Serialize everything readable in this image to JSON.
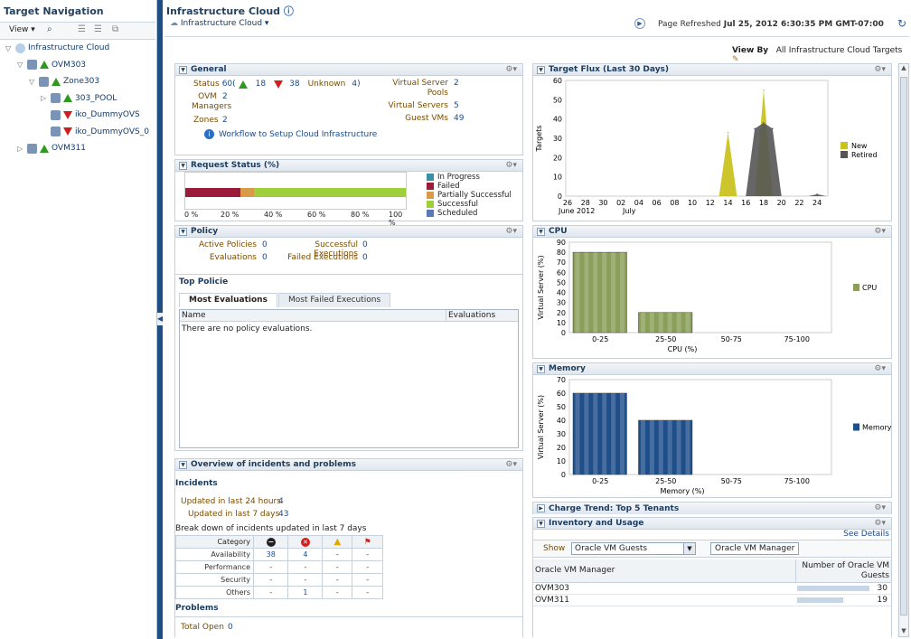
{
  "nav": {
    "title": "Target Navigation",
    "view_label": "View",
    "tree": [
      {
        "label": "Infrastructure Cloud",
        "indent": 0,
        "twisty": "▽",
        "status": ""
      },
      {
        "label": "OVM303",
        "indent": 1,
        "twisty": "▽",
        "status": "up"
      },
      {
        "label": "Zone303",
        "indent": 2,
        "twisty": "▽",
        "status": "up"
      },
      {
        "label": "303_POOL",
        "indent": 3,
        "twisty": "▷",
        "status": "up"
      },
      {
        "label": "iko_DummyOVS",
        "indent": 3,
        "twisty": "",
        "status": "down"
      },
      {
        "label": "iko_DummyOVS_0",
        "indent": 3,
        "twisty": "",
        "status": "down"
      },
      {
        "label": "OVM311",
        "indent": 1,
        "twisty": "▷",
        "status": "up"
      }
    ]
  },
  "header": {
    "title": "Infrastructure Cloud",
    "crumb": "Infrastructure Cloud",
    "refresh_label": "Page Refreshed",
    "refresh_time": "Jul 25, 2012 6:30:35 PM GMT-07:00",
    "viewby_label": "View By",
    "viewby_value": "All Infrastructure Cloud Targets"
  },
  "general": {
    "title": "General",
    "status_label": "Status",
    "status_val": "60(",
    "up_count": "18",
    "down_count": "38",
    "unknown": "Unknown",
    "unknown_val": "4)",
    "ovm_label": "OVM Managers",
    "ovm_val": "2",
    "zones_label": "Zones",
    "zones_val": "2",
    "vsp_label": "Virtual Server Pools",
    "vsp_val": "2",
    "vs_label": "Virtual Servers",
    "vs_val": "5",
    "guest_label": "Guest VMs",
    "guest_val": "49",
    "workflow": "Workflow to Setup Cloud Infrastructure"
  },
  "request": {
    "title": "Request Status (%)",
    "ticks": [
      "0 %",
      "20 %",
      "40 %",
      "60 %",
      "80 %",
      "100 %"
    ],
    "legend": [
      {
        "name": "In Progress",
        "color": "#3d8fa5"
      },
      {
        "name": "Failed",
        "color": "#9b1b3b"
      },
      {
        "name": "Partially Successful",
        "color": "#d99b4a"
      },
      {
        "name": "Successful",
        "color": "#9fcf3a"
      },
      {
        "name": "Scheduled",
        "color": "#5a78b5"
      }
    ],
    "segments": [
      {
        "name": "Failed",
        "pct": 25,
        "color": "#9b1b3b"
      },
      {
        "name": "Partially Successful",
        "pct": 6,
        "color": "#d99b4a"
      },
      {
        "name": "Successful",
        "pct": 69,
        "color": "#9fcf3a"
      }
    ]
  },
  "policy": {
    "title": "Policy",
    "active_label": "Active Policies",
    "active_val": "0",
    "succ_label": "Successful Executions",
    "succ_val": "0",
    "eval_label": "Evaluations",
    "eval_val": "0",
    "failed_label": "Failed Executions",
    "failed_val": "0",
    "top_title": "Top Policie",
    "tab1": "Most Evaluations",
    "tab2": "Most Failed Executions",
    "col_name": "Name",
    "col_eval": "Evaluations",
    "empty": "There are no policy evaluations."
  },
  "incidents": {
    "title": "Overview of incidents and problems",
    "section": "Incidents",
    "last24_label": "Updated in last 24 hours",
    "last24_val": "4",
    "last7_label": "Updated in last 7 days",
    "last7_val": "43",
    "breakdown": "Break down of incidents updated in last 7 days",
    "col_category": "Category",
    "rows": [
      [
        "Availability",
        "38",
        "4",
        "-",
        "-"
      ],
      [
        "Performance",
        "-",
        "-",
        "-",
        "-"
      ],
      [
        "Security",
        "-",
        "-",
        "-",
        "-"
      ],
      [
        "Others",
        "-",
        "1",
        "-",
        "-"
      ]
    ],
    "problems": "Problems",
    "total_open_label": "Total Open",
    "total_open_val": "0"
  },
  "flux": {
    "title": "Target Flux (Last 30 Days)",
    "ylabel": "Targets",
    "legend": [
      "New",
      "Retired"
    ]
  },
  "cpu": {
    "title": "CPU"
  },
  "memory": {
    "title": "Memory"
  },
  "charge": {
    "title": "Charge Trend: Top 5 Tenants"
  },
  "inventory": {
    "title": "Inventory and Usage",
    "see_details": "See Details",
    "show_label": "Show",
    "show_value": "Oracle VM Guests",
    "group_value": "Oracle VM Manager",
    "col1": "Oracle VM Manager",
    "col2": "Number of Oracle VM Guests",
    "rows": [
      {
        "name": "OVM303",
        "value": "30"
      },
      {
        "name": "OVM311",
        "value": "19"
      }
    ]
  },
  "chart_data": [
    {
      "type": "area",
      "title": "Target Flux (Last 30 Days)",
      "ylabel": "Targets",
      "xlabel": "",
      "x": [
        26,
        27,
        28,
        29,
        30,
        1,
        2,
        3,
        4,
        5,
        6,
        7,
        8,
        9,
        10,
        11,
        12,
        13,
        14,
        15,
        16,
        17,
        18,
        19,
        20,
        21,
        22,
        23,
        24,
        25
      ],
      "xticks": [
        "26",
        "28",
        "30",
        "02",
        "04",
        "06",
        "08",
        "10",
        "12",
        "14",
        "16",
        "18",
        "20",
        "22",
        "24"
      ],
      "xsub": [
        "June 2012",
        "July"
      ],
      "ylim": [
        0,
        60
      ],
      "yticks": [
        0,
        10,
        20,
        30,
        40,
        50,
        60
      ],
      "series": [
        {
          "name": "New",
          "color": "#c9c321",
          "values": [
            0,
            0,
            0,
            0,
            0,
            0,
            0,
            0,
            0,
            0,
            0,
            0,
            0,
            0,
            0,
            0,
            0,
            0,
            33,
            0,
            0,
            0,
            55,
            0,
            0,
            0,
            0,
            0,
            0,
            0
          ]
        },
        {
          "name": "Retired",
          "color": "#555",
          "values": [
            0,
            0,
            0,
            0,
            0,
            0,
            0,
            0,
            0,
            0,
            0,
            0,
            0,
            0,
            0,
            0,
            0,
            0,
            0,
            0,
            0,
            35,
            38,
            35,
            0,
            0,
            0,
            0,
            1,
            0
          ]
        }
      ]
    },
    {
      "type": "bar",
      "title": "CPU",
      "xlabel": "CPU (%)",
      "ylabel": "Virtual Server (%)",
      "categories": [
        "0-25",
        "25-50",
        "50-75",
        "75-100"
      ],
      "ylim": [
        0,
        90
      ],
      "yticks": [
        0,
        10,
        20,
        30,
        40,
        50,
        60,
        70,
        80,
        90
      ],
      "series": [
        {
          "name": "CPU",
          "color": "#8aa05a",
          "values": [
            80,
            20,
            0,
            0
          ]
        }
      ]
    },
    {
      "type": "bar",
      "title": "Memory",
      "xlabel": "Memory (%)",
      "ylabel": "Virtual Server (%)",
      "categories": [
        "0-25",
        "25-50",
        "50-75",
        "75-100"
      ],
      "ylim": [
        0,
        70
      ],
      "yticks": [
        0,
        10,
        20,
        30,
        40,
        50,
        60,
        70
      ],
      "series": [
        {
          "name": "Memory",
          "color": "#1f4f8a",
          "values": [
            60,
            40,
            0,
            0
          ]
        }
      ]
    }
  ]
}
